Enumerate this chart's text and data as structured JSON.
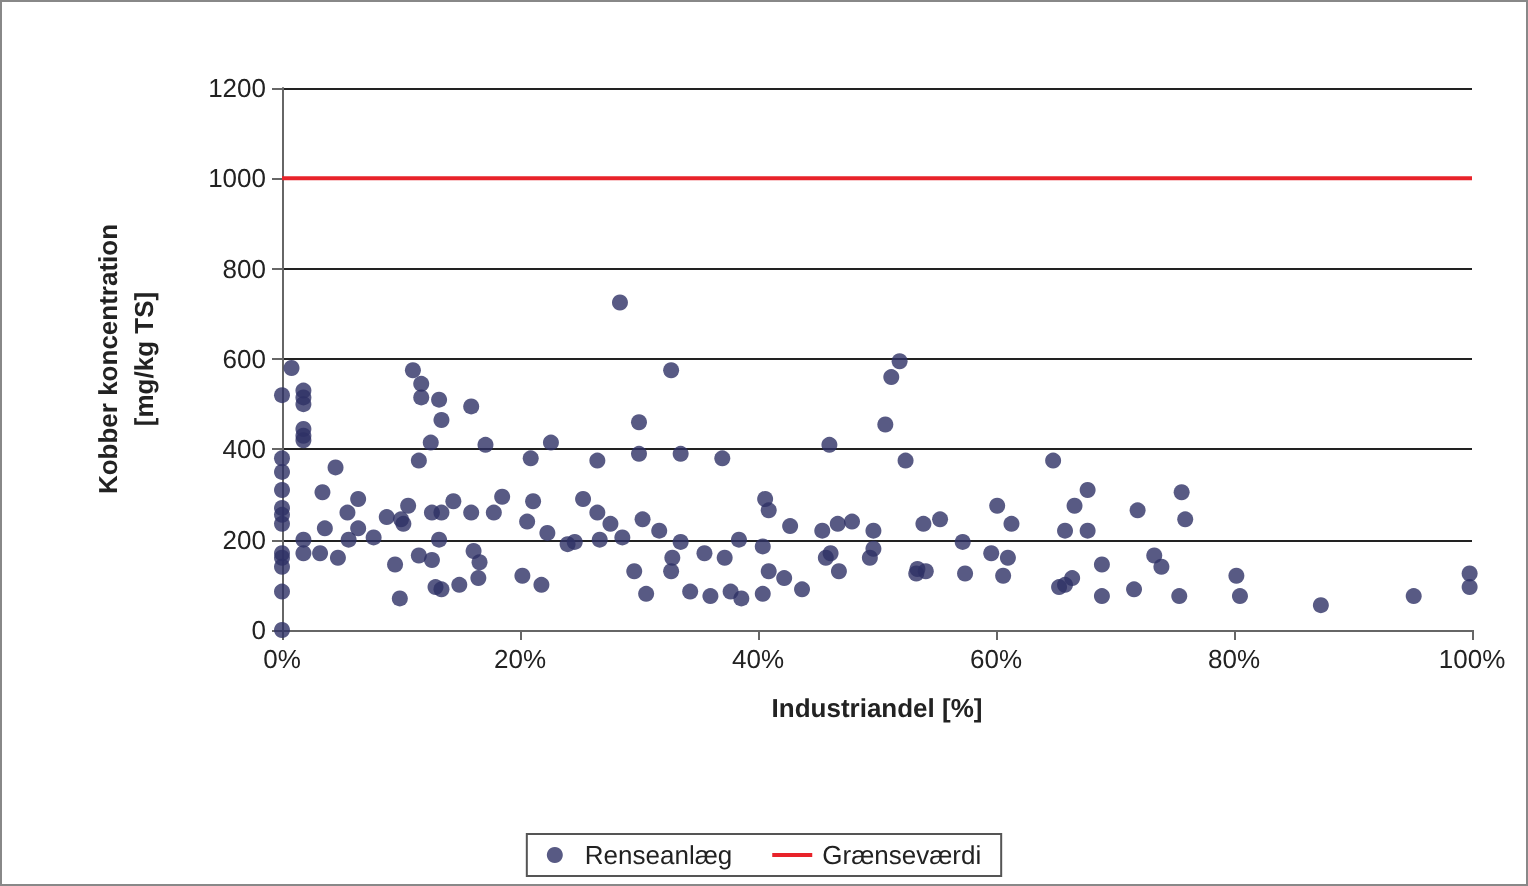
{
  "chart_data": {
    "type": "scatter",
    "xlabel": "Industriandel [%]",
    "ylabel": "Kobber koncentration\n[mg/kg TS]",
    "series": [
      {
        "name": "Renseanlæg",
        "color": "#2e3165",
        "x": [
          0,
          0,
          0,
          0,
          0,
          0,
          0,
          0,
          0,
          0,
          0,
          0,
          0.8,
          1.8,
          1.8,
          1.8,
          1.8,
          1.8,
          1.8,
          1.8,
          1.8,
          3.4,
          3.6,
          3.2,
          4.5,
          4.7,
          5.5,
          5.6,
          6.4,
          6.4,
          7.7,
          8.8,
          9.5,
          9.9,
          10,
          10.2,
          10.6,
          11,
          11.5,
          11.7,
          11.7,
          12.5,
          11.5,
          12.6,
          12.6,
          12.9,
          13.4,
          13.2,
          13.4,
          13.4,
          13.2,
          14.4,
          14.9,
          15.9,
          15.9,
          16.1,
          16.6,
          16.5,
          17.1,
          17.8,
          18.5,
          20.2,
          20.9,
          21.1,
          20.6,
          21.8,
          22.3,
          22.6,
          24,
          24.6,
          25.3,
          26.5,
          26.5,
          26.7,
          27.6,
          28.4,
          28.6,
          29.6,
          30.6,
          30.3,
          30,
          30,
          31.7,
          32.7,
          32.7,
          33.5,
          33.5,
          32.8,
          34.3,
          35.5,
          36,
          37,
          37.2,
          37.7,
          38.6,
          38.4,
          40.4,
          40.4,
          40.6,
          40.9,
          40.9,
          42.2,
          42.7,
          43.7,
          45.4,
          45.7,
          46.1,
          46,
          46.8,
          46.7,
          47.9,
          49.4,
          49.7,
          49.7,
          50.7,
          51.2,
          51.9,
          52.4,
          53.3,
          53.4,
          54.1,
          53.9,
          55.3,
          57.2,
          57.4,
          59.6,
          60.1,
          60.6,
          61,
          61.3,
          64.8,
          65.3,
          65.8,
          66.4,
          65.8,
          66.6,
          67.7,
          67.7,
          68.9,
          68.9,
          71.6,
          71.9,
          73.3,
          73.9,
          75.4,
          75.6,
          75.9,
          80.2,
          80.5,
          87.3,
          95.1,
          99.8,
          99.8
        ],
        "values": [
          520,
          380,
          350,
          310,
          270,
          255,
          235,
          170,
          160,
          140,
          85,
          0,
          580,
          530,
          515,
          500,
          445,
          430,
          420,
          200,
          170,
          305,
          225,
          170,
          360,
          160,
          260,
          200,
          290,
          225,
          205,
          250,
          145,
          70,
          245,
          235,
          275,
          575,
          165,
          545,
          515,
          415,
          375,
          260,
          155,
          95,
          90,
          510,
          465,
          260,
          200,
          285,
          100,
          495,
          260,
          175,
          150,
          115,
          410,
          260,
          295,
          120,
          380,
          285,
          240,
          100,
          215,
          415,
          190,
          195,
          290,
          375,
          260,
          200,
          235,
          725,
          205,
          130,
          80,
          245,
          460,
          390,
          220,
          130,
          575,
          195,
          390,
          160,
          85,
          170,
          75,
          380,
          160,
          85,
          70,
          200,
          185,
          80,
          290,
          265,
          130,
          115,
          230,
          90,
          220,
          160,
          170,
          410,
          130,
          235,
          240,
          160,
          180,
          220,
          455,
          560,
          595,
          375,
          125,
          135,
          130,
          235,
          245,
          195,
          125,
          170,
          275,
          120,
          160,
          235,
          375,
          95,
          100,
          115,
          220,
          275,
          310,
          220,
          145,
          75,
          90,
          265,
          165,
          140,
          75,
          305,
          245,
          120,
          75,
          55,
          75,
          125,
          95
        ]
      }
    ],
    "ref_lines": [
      {
        "axis": "y",
        "value": 1000,
        "label": "Grænseværdi",
        "color": "#e8232a"
      }
    ],
    "xlim": [
      0,
      100
    ],
    "xticks": [
      {
        "value": 0,
        "label": "0%"
      },
      {
        "value": 20,
        "label": "20%"
      },
      {
        "value": 40,
        "label": "40%"
      },
      {
        "value": 60,
        "label": "60%"
      },
      {
        "value": 80,
        "label": "80%"
      },
      {
        "value": 100,
        "label": "100%"
      }
    ],
    "ylim": [
      0,
      1200
    ],
    "yticks": [
      0,
      200,
      400,
      600,
      800,
      1000,
      1200
    ],
    "grid": "y",
    "legend": "bottom",
    "marker": "circle"
  }
}
